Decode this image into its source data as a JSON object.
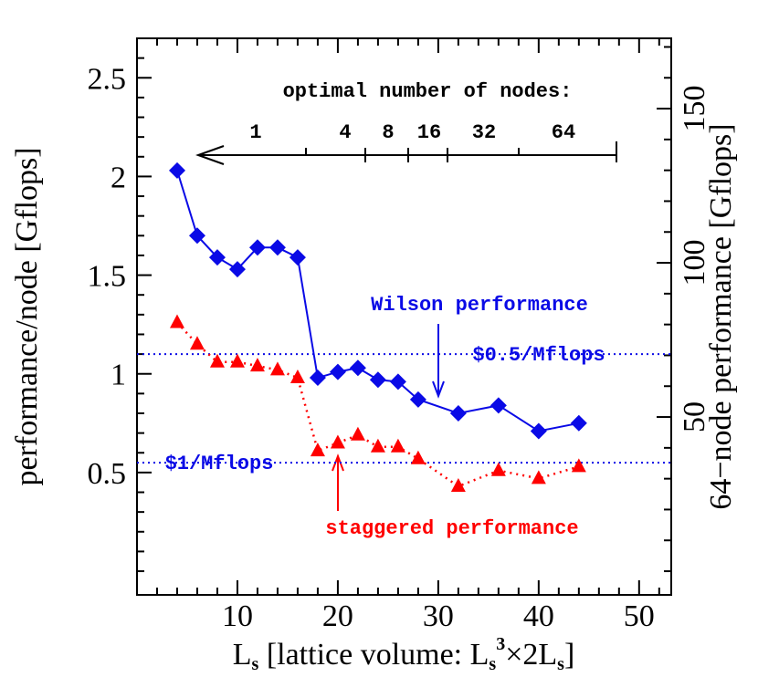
{
  "chart_data": {
    "type": "line",
    "xlabel": [
      "L",
      "s",
      " [lattice volume: L",
      "s",
      "3",
      "×2L",
      "s",
      "]"
    ],
    "ylabel": "performance/node [Gflops]",
    "y2label": "64−node performance [Gflops]",
    "xlim": [
      0,
      53.2
    ],
    "xticks": [
      10,
      20,
      30,
      40,
      50
    ],
    "ylim": [
      -0.12,
      2.7
    ],
    "yticks": [
      0.5,
      1,
      1.5,
      2,
      2.5
    ],
    "y2lim": [
      -7.68,
      172.8
    ],
    "y2ticks": [
      50,
      100,
      150
    ],
    "minor_xticks": [
      2,
      4,
      6,
      8,
      12,
      14,
      16,
      18,
      22,
      24,
      26,
      28,
      32,
      34,
      36,
      38,
      42,
      44,
      46,
      48,
      52
    ],
    "minor_yticks": [
      0,
      0.1,
      0.2,
      0.3,
      0.4,
      0.6,
      0.7,
      0.8,
      0.9,
      1.1,
      1.2,
      1.3,
      1.4,
      1.6,
      1.7,
      1.8,
      1.9,
      2.1,
      2.2,
      2.3,
      2.4,
      2.6
    ],
    "minor_y2ticks": [
      0,
      10,
      20,
      30,
      40,
      60,
      70,
      80,
      90,
      110,
      120,
      130,
      140,
      160,
      170
    ],
    "x": [
      4,
      6,
      8,
      10,
      12,
      14,
      16,
      18,
      20,
      22,
      24,
      26,
      28,
      32,
      36,
      40,
      44
    ],
    "series": [
      {
        "name": "Wilson performance",
        "color": "#0a0ae6",
        "marker": "diamond",
        "line": "solid",
        "values": [
          2.03,
          1.7,
          1.59,
          1.53,
          1.64,
          1.64,
          1.59,
          0.98,
          1.01,
          1.03,
          0.97,
          0.96,
          0.87,
          0.8,
          0.84,
          0.71,
          0.75
        ]
      },
      {
        "name": "staggered performance",
        "color": "#ff0000",
        "marker": "triangle",
        "line": "dotted",
        "values": [
          1.26,
          1.15,
          1.06,
          1.06,
          1.04,
          1.02,
          0.98,
          0.61,
          0.65,
          0.69,
          0.63,
          0.63,
          0.57,
          0.43,
          0.51,
          0.47,
          0.53
        ]
      }
    ],
    "hlines": [
      {
        "label": "$0.5/Mflops",
        "value": 1.1,
        "color": "#0a0ae6"
      },
      {
        "label": "$1/Mflops",
        "value": 0.55,
        "color": "#0a0ae6"
      }
    ],
    "node_scale": {
      "title": "optimal number of nodes:",
      "labels": [
        "1",
        "4",
        "8",
        "16",
        "32",
        "64"
      ]
    }
  }
}
